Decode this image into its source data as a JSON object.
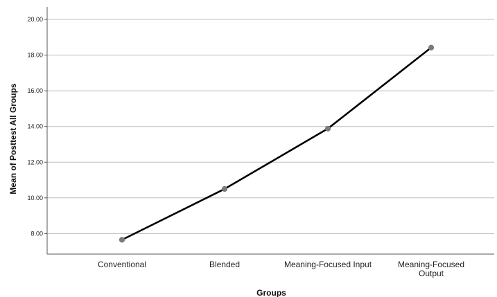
{
  "chart_data": {
    "type": "line",
    "xlabel": "Groups",
    "ylabel": "Mean of Posttest All Groups",
    "categories": [
      "Conventional",
      "Blended",
      "Meaning-Focused Input",
      "Meaning-Focused Output"
    ],
    "series": [
      {
        "values": [
          7.65,
          10.5,
          13.88,
          18.42
        ]
      }
    ],
    "ylim": [
      6.85,
      20.7
    ],
    "yticks": [
      8,
      10,
      12,
      14,
      16,
      18,
      20
    ],
    "ytick_labels": [
      "8.00",
      "10.00",
      "12.00",
      "14.00",
      "16.00",
      "18.00",
      "20.00"
    ],
    "grid": "horizontal",
    "colors": {
      "line": "#000000",
      "marker": "#7a7a7a",
      "grid": "#bdbdbd",
      "axis": "#555555"
    }
  }
}
